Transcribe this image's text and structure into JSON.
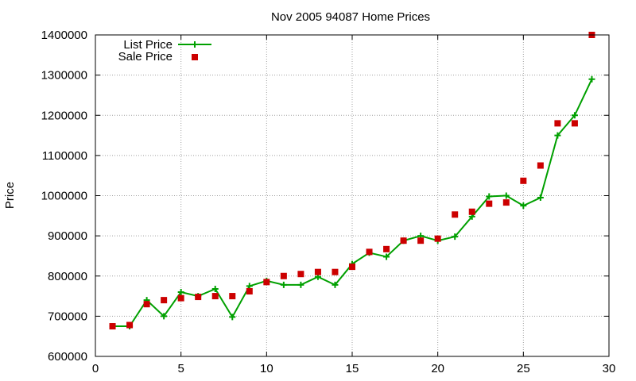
{
  "chart_data": {
    "type": "line",
    "title": "Nov 2005 94087 Home Prices",
    "xlabel": "",
    "ylabel": "Price",
    "xlim": [
      0,
      30
    ],
    "ylim": [
      600000,
      1400000
    ],
    "xticks": [
      "0",
      "5",
      "10",
      "15",
      "20",
      "25",
      "30"
    ],
    "yticks": [
      "600000",
      "700000",
      "800000",
      "900000",
      "1000000",
      "1100000",
      "1200000",
      "1300000",
      "1400000"
    ],
    "grid": true,
    "legend_position": "top-left",
    "x": [
      1,
      2,
      3,
      4,
      5,
      6,
      7,
      8,
      9,
      10,
      11,
      12,
      13,
      14,
      15,
      16,
      17,
      18,
      19,
      20,
      21,
      22,
      23,
      24,
      25,
      26,
      27,
      28,
      29
    ],
    "series": [
      {
        "name": "List Price",
        "style": "line-with-plus-markers",
        "color": "#00a000",
        "values": [
          675000,
          675000,
          740000,
          700000,
          760000,
          750000,
          768000,
          698000,
          775000,
          788000,
          778000,
          778000,
          798000,
          778000,
          830000,
          858000,
          848000,
          888000,
          900000,
          888000,
          898000,
          948000,
          998000,
          1000000,
          975000,
          995000,
          1150000,
          1200000,
          1290000
        ]
      },
      {
        "name": "Sale Price",
        "style": "square-markers",
        "color": "#cc0000",
        "values": [
          675000,
          678000,
          730000,
          740000,
          745000,
          748000,
          750000,
          750000,
          762000,
          785000,
          800000,
          805000,
          810000,
          810000,
          823000,
          860000,
          867000,
          888000,
          888000,
          893000,
          953000,
          960000,
          980000,
          983000,
          1037000,
          1075000,
          1180000,
          1180000,
          1400000
        ]
      }
    ]
  }
}
